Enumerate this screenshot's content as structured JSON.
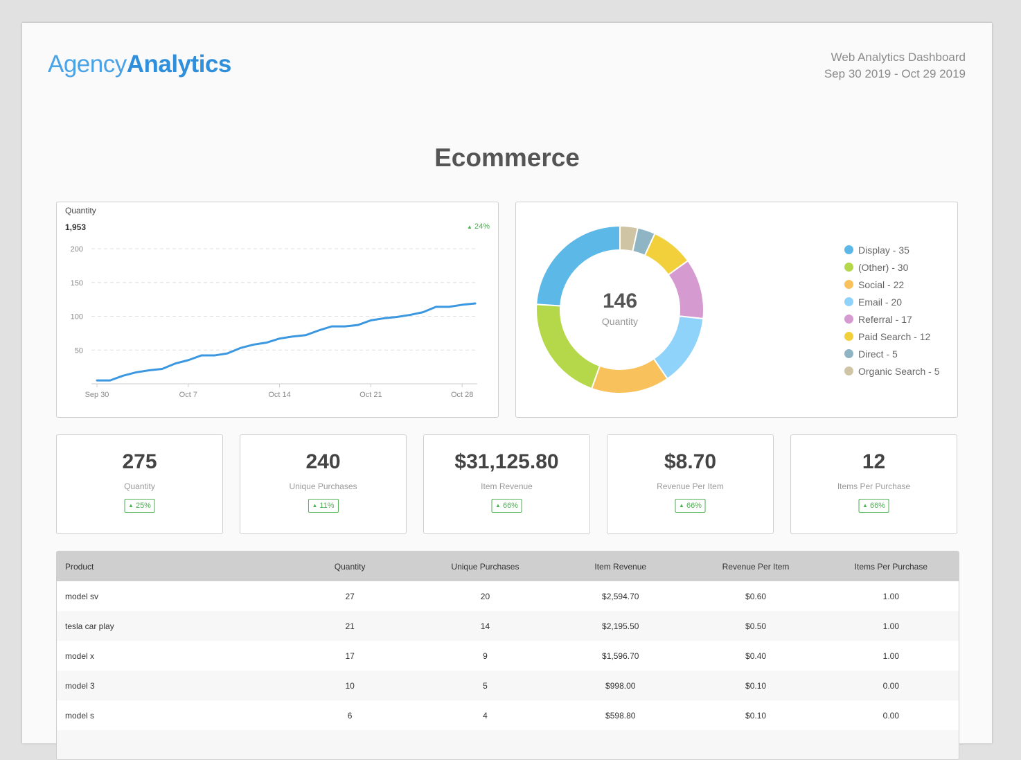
{
  "header": {
    "logo_light": "Agency",
    "logo_bold": "Analytics",
    "dashboard_title": "Web Analytics Dashboard",
    "date_range": "Sep 30 2019 - Oct 29 2019"
  },
  "page_title": "Ecommerce",
  "quantity_chart": {
    "label": "Quantity",
    "total": "1,953",
    "change": "24%"
  },
  "chart_data": [
    {
      "type": "line",
      "title": "Quantity",
      "x": [
        "Sep 30",
        "Oct 1",
        "Oct 2",
        "Oct 3",
        "Oct 4",
        "Oct 5",
        "Oct 6",
        "Oct 7",
        "Oct 8",
        "Oct 9",
        "Oct 10",
        "Oct 11",
        "Oct 12",
        "Oct 13",
        "Oct 14",
        "Oct 15",
        "Oct 16",
        "Oct 17",
        "Oct 18",
        "Oct 19",
        "Oct 20",
        "Oct 21",
        "Oct 22",
        "Oct 23",
        "Oct 24",
        "Oct 25",
        "Oct 26",
        "Oct 27",
        "Oct 28",
        "Oct 29"
      ],
      "xticks": [
        "Sep 30",
        "Oct 7",
        "Oct 14",
        "Oct 21",
        "Oct 28"
      ],
      "series": [
        {
          "values": [
            5,
            5,
            12,
            17,
            20,
            22,
            30,
            35,
            42,
            42,
            45,
            53,
            58,
            61,
            67,
            70,
            72,
            79,
            85,
            85,
            87,
            94,
            97,
            99,
            102,
            106,
            114,
            114,
            117,
            119
          ]
        }
      ],
      "yticks": [
        50,
        100,
        150,
        200
      ],
      "ylim": [
        0,
        200
      ],
      "grid": true,
      "color": "#3b98e0"
    },
    {
      "type": "pie",
      "donut": true,
      "center_value": "146",
      "center_label": "Quantity",
      "categories": [
        "Display",
        "(Other)",
        "Social",
        "Email",
        "Referral",
        "Paid Search",
        "Direct",
        "Organic Search"
      ],
      "values": [
        35,
        30,
        22,
        20,
        17,
        12,
        5,
        5
      ],
      "colors": [
        "#5cb8e6",
        "#b5d84a",
        "#f8c15c",
        "#8fd3fb",
        "#d59ad0",
        "#f2d03b",
        "#8fb4c4",
        "#cfc5a5"
      ],
      "legend": "right"
    }
  ],
  "legend_items": [
    {
      "label": "Display - 35",
      "color": "#5cb8e6"
    },
    {
      "label": "(Other) - 30",
      "color": "#b5d84a"
    },
    {
      "label": "Social - 22",
      "color": "#f8c15c"
    },
    {
      "label": "Email - 20",
      "color": "#8fd3fb"
    },
    {
      "label": "Referral - 17",
      "color": "#d59ad0"
    },
    {
      "label": "Paid Search - 12",
      "color": "#f2d03b"
    },
    {
      "label": "Direct - 5",
      "color": "#8fb4c4"
    },
    {
      "label": "Organic Search - 5",
      "color": "#cfc5a5"
    }
  ],
  "kpis": [
    {
      "value": "275",
      "label": "Quantity",
      "change": "25%"
    },
    {
      "value": "240",
      "label": "Unique Purchases",
      "change": "11%"
    },
    {
      "value": "$31,125.80",
      "label": "Item Revenue",
      "change": "66%"
    },
    {
      "value": "$8.70",
      "label": "Revenue Per Item",
      "change": "66%"
    },
    {
      "value": "12",
      "label": "Items Per Purchase",
      "change": "66%"
    }
  ],
  "table": {
    "headers": [
      "Product",
      "Quantity",
      "Unique Purchases",
      "Item Revenue",
      "Revenue Per Item",
      "Items Per Purchase"
    ],
    "rows": [
      [
        "model sv",
        "27",
        "20",
        "$2,594.70",
        "$0.60",
        "1.00"
      ],
      [
        "tesla car play",
        "21",
        "14",
        "$2,195.50",
        "$0.50",
        "1.00"
      ],
      [
        "model x",
        "17",
        "9",
        "$1,596.70",
        "$0.40",
        "1.00"
      ],
      [
        "model 3",
        "10",
        "5",
        "$998.00",
        "$0.10",
        "0.00"
      ],
      [
        "model s",
        "6",
        "4",
        "$598.80",
        "$0.10",
        "0.00"
      ]
    ]
  },
  "colors": {
    "accent": "#3b98e0",
    "positive": "#4caf50"
  }
}
